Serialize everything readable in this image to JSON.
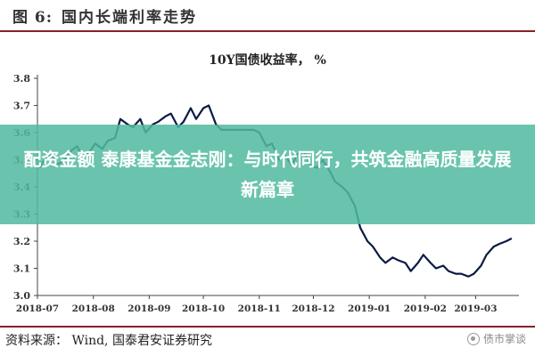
{
  "header": {
    "figure_label": "图 6:",
    "figure_title": "国内长端利率走势"
  },
  "overlay": {
    "text": "配资金额 泰康基金金志刚：与时代同行，共筑金融高质量发展新篇章"
  },
  "source": {
    "text": "资料来源： Wind, 国泰君安证券研究"
  },
  "watermark": {
    "text": "债市掌谈"
  },
  "colors": {
    "line": "#0b1a44",
    "rule": "#8a1f2a",
    "overlay": "#52baa0"
  },
  "chart_data": {
    "type": "line",
    "title": "10Y国债收益率， %",
    "xlabel": "",
    "ylabel": "",
    "ylim": [
      3.0,
      3.8
    ],
    "yticks": [
      "3.0",
      "3.1",
      "3.2",
      "3.3",
      "3.4",
      "3.5",
      "3.6",
      "3.7",
      "3.8"
    ],
    "xticks": [
      "2018-07",
      "2018-08",
      "2018-09",
      "2018-10",
      "2018-11",
      "2018-12",
      "2019-01",
      "2019-02",
      "2019-03"
    ],
    "grid": false,
    "series": [
      {
        "name": "",
        "x": [
          "2018-07-02",
          "2018-07-05",
          "2018-07-09",
          "2018-07-12",
          "2018-07-16",
          "2018-07-19",
          "2018-07-23",
          "2018-07-26",
          "2018-07-30",
          "2018-08-02",
          "2018-08-06",
          "2018-08-09",
          "2018-08-13",
          "2018-08-16",
          "2018-08-20",
          "2018-08-23",
          "2018-08-27",
          "2018-08-30",
          "2018-09-03",
          "2018-09-06",
          "2018-09-10",
          "2018-09-13",
          "2018-09-17",
          "2018-09-20",
          "2018-09-24",
          "2018-09-27",
          "2018-10-01",
          "2018-10-04",
          "2018-10-08",
          "2018-10-11",
          "2018-10-15",
          "2018-10-18",
          "2018-10-22",
          "2018-10-25",
          "2018-10-29",
          "2018-11-01",
          "2018-11-05",
          "2018-11-08",
          "2018-11-12",
          "2018-11-15",
          "2018-11-19",
          "2018-11-22",
          "2018-11-26",
          "2018-11-29",
          "2018-12-03",
          "2018-12-06",
          "2018-12-10",
          "2018-12-13",
          "2018-12-17",
          "2018-12-20",
          "2018-12-24",
          "2018-12-27",
          "2018-12-31",
          "2019-01-03",
          "2019-01-07",
          "2019-01-10",
          "2019-01-14",
          "2019-01-17",
          "2019-01-21",
          "2019-01-24",
          "2019-01-28",
          "2019-01-31",
          "2019-02-04",
          "2019-02-07",
          "2019-02-11",
          "2019-02-14",
          "2019-02-18",
          "2019-02-21",
          "2019-02-25",
          "2019-02-28",
          "2019-03-04",
          "2019-03-07",
          "2019-03-11",
          "2019-03-14",
          "2019-03-18",
          "2019-03-21"
        ],
        "values": [
          3.47,
          3.5,
          3.52,
          3.48,
          3.5,
          3.53,
          3.55,
          3.51,
          3.53,
          3.56,
          3.54,
          3.57,
          3.58,
          3.65,
          3.63,
          3.62,
          3.65,
          3.6,
          3.63,
          3.64,
          3.66,
          3.67,
          3.62,
          3.64,
          3.69,
          3.65,
          3.69,
          3.7,
          3.63,
          3.61,
          3.61,
          3.61,
          3.61,
          3.61,
          3.61,
          3.6,
          3.55,
          3.56,
          3.5,
          3.52,
          3.48,
          3.52,
          3.53,
          3.48,
          3.47,
          3.5,
          3.46,
          3.42,
          3.4,
          3.38,
          3.33,
          3.25,
          3.2,
          3.18,
          3.14,
          3.12,
          3.14,
          3.13,
          3.12,
          3.09,
          3.12,
          3.15,
          3.12,
          3.1,
          3.11,
          3.09,
          3.08,
          3.08,
          3.07,
          3.08,
          3.11,
          3.15,
          3.18,
          3.19,
          3.2,
          3.21
        ]
      }
    ]
  }
}
